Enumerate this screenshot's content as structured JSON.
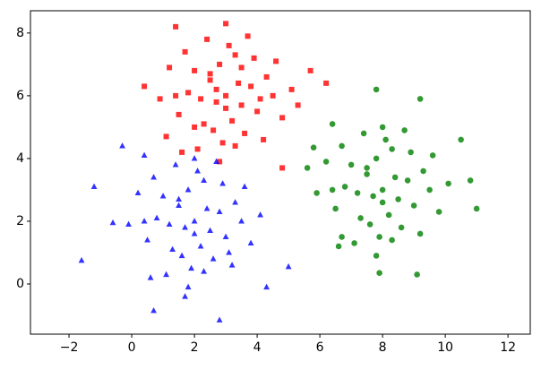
{
  "chart_data": {
    "type": "scatter",
    "xlim": [
      -3.23,
      12.71
    ],
    "ylim": [
      -1.6,
      8.71
    ],
    "xticks": [
      {
        "value": -2,
        "label": "−2"
      },
      0,
      2,
      4,
      6,
      8,
      10,
      12
    ],
    "yticks": [
      0,
      2,
      4,
      6,
      8
    ],
    "series": [
      {
        "color": "#ff0000",
        "marker": "square",
        "x": [
          3.0,
          2.5,
          3.5,
          2.8,
          3.2,
          2.2,
          3.8,
          2.0,
          4.0,
          3.3,
          2.6,
          1.8,
          4.3,
          2.9,
          3.1,
          1.5,
          4.5,
          2.4,
          3.6,
          2.7,
          1.2,
          4.8,
          3.0,
          2.1,
          3.9,
          1.4,
          3.4,
          2.3,
          4.2,
          1.7,
          0.9,
          5.1,
          2.8,
          3.7,
          1.6,
          4.6,
          2.5,
          3.3,
          1.4,
          3.0,
          6.2,
          0.4,
          5.7,
          4.8,
          5.3,
          2.0,
          3.5,
          1.1,
          4.1,
          2.7
        ],
        "values": [
          6.0,
          6.5,
          5.7,
          7.0,
          5.2,
          5.9,
          6.3,
          6.8,
          5.5,
          7.3,
          4.9,
          6.1,
          6.6,
          4.5,
          7.6,
          5.4,
          6.0,
          7.8,
          4.8,
          5.8,
          6.9,
          5.3,
          8.3,
          4.3,
          7.2,
          8.2,
          6.4,
          5.1,
          4.6,
          7.4,
          5.9,
          6.2,
          3.9,
          7.9,
          4.2,
          7.1,
          6.7,
          4.4,
          6.0,
          5.6,
          6.4,
          6.3,
          6.8,
          3.7,
          5.7,
          5.0,
          6.9,
          4.7,
          5.9,
          6.2
        ]
      },
      {
        "color": "#0000ff",
        "marker": "triangle",
        "x": [
          2.0,
          1.5,
          2.5,
          1.8,
          2.2,
          1.2,
          2.8,
          1.0,
          3.0,
          2.3,
          1.6,
          0.8,
          3.3,
          1.9,
          2.1,
          0.5,
          3.5,
          1.4,
          2.6,
          1.7,
          0.2,
          3.8,
          2.0,
          1.1,
          2.9,
          0.4,
          2.4,
          1.3,
          3.2,
          0.7,
          -0.1,
          4.1,
          1.8,
          2.7,
          0.6,
          3.6,
          1.5,
          2.3,
          0.4,
          2.0,
          -1.6,
          0.7,
          2.8,
          5.0,
          4.3,
          -1.2,
          -0.3,
          -0.6,
          3.1,
          1.7
        ],
        "values": [
          2.0,
          2.5,
          1.7,
          3.0,
          1.2,
          1.9,
          2.3,
          2.8,
          1.5,
          3.3,
          0.9,
          2.1,
          2.6,
          0.5,
          3.6,
          1.4,
          2.0,
          3.8,
          0.8,
          1.8,
          2.9,
          1.3,
          4.0,
          0.3,
          3.2,
          4.1,
          2.4,
          1.1,
          0.6,
          3.4,
          1.9,
          2.2,
          -0.1,
          3.9,
          0.2,
          3.1,
          2.7,
          0.4,
          2.0,
          1.6,
          0.75,
          -0.85,
          -1.15,
          0.55,
          -0.1,
          3.1,
          4.4,
          1.95,
          1.0,
          -0.4
        ]
      },
      {
        "color": "#008000",
        "marker": "circle",
        "x": [
          8.0,
          7.5,
          8.5,
          7.8,
          8.2,
          7.2,
          8.8,
          7.0,
          9.0,
          8.3,
          7.6,
          6.8,
          9.3,
          7.9,
          8.1,
          6.5,
          9.5,
          7.4,
          8.6,
          7.7,
          6.2,
          9.8,
          8.0,
          7.1,
          8.9,
          6.4,
          8.4,
          7.3,
          9.2,
          6.7,
          5.9,
          10.1,
          7.8,
          8.7,
          6.6,
          9.6,
          7.5,
          8.3,
          6.4,
          8.0,
          7.9,
          9.1,
          5.6,
          5.8,
          11.0,
          7.8,
          9.2,
          6.7,
          10.5,
          10.8
        ],
        "values": [
          3.0,
          3.5,
          2.7,
          4.0,
          2.2,
          2.9,
          3.3,
          3.8,
          2.5,
          4.3,
          1.9,
          3.1,
          3.6,
          1.5,
          4.6,
          2.4,
          3.0,
          4.8,
          1.8,
          2.8,
          3.9,
          2.3,
          5.0,
          1.3,
          4.2,
          5.1,
          3.4,
          2.1,
          1.6,
          4.4,
          2.9,
          3.2,
          0.9,
          4.9,
          1.2,
          4.1,
          3.7,
          1.4,
          3.0,
          2.6,
          0.35,
          0.3,
          3.7,
          4.35,
          2.4,
          6.2,
          5.9,
          1.5,
          4.6,
          3.3
        ]
      }
    ]
  }
}
